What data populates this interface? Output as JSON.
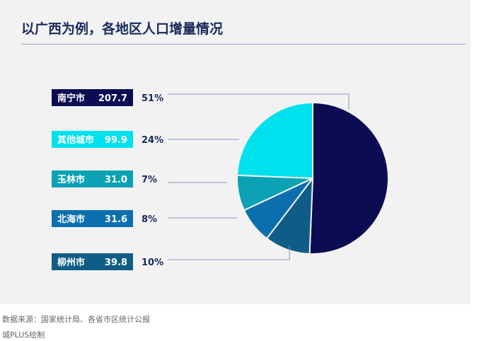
{
  "title": "以广西为例，各地区人口增量情况",
  "source": "数据来源：国家统计局、各省市区统计公报",
  "credit": "城PLUS绘制",
  "chart_data": {
    "type": "pie",
    "title": "以广西为例，各地区人口增量情况",
    "slices": [
      {
        "label": "南宁市",
        "value": 207.7,
        "value_label": "207.7",
        "percent": "51%",
        "color": "#0b0c52"
      },
      {
        "label": "柳州市",
        "value": 39.8,
        "value_label": "39.8",
        "percent": "10%",
        "color": "#0f5d86"
      },
      {
        "label": "北海市",
        "value": 31.6,
        "value_label": "31.6",
        "percent": "8%",
        "color": "#0b6fae"
      },
      {
        "label": "玉林市",
        "value": 31.0,
        "value_label": "31.0",
        "percent": "7%",
        "color": "#0aa2b4"
      },
      {
        "label": "其他城市",
        "value": 99.9,
        "value_label": "99.9",
        "percent": "24%",
        "color": "#00e1ee"
      }
    ],
    "legend_order": [
      "南宁市",
      "其他城市",
      "玉林市",
      "北海市",
      "柳州市"
    ]
  }
}
